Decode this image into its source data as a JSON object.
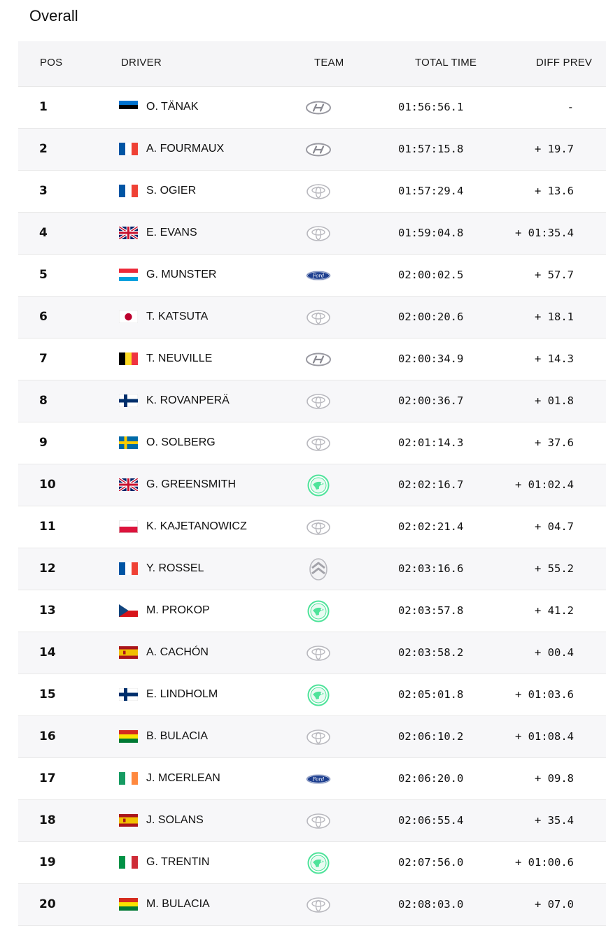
{
  "title": "Overall",
  "columns": {
    "pos": "POS",
    "driver": "DRIVER",
    "team": "TEAM",
    "total_time": "TOTAL TIME",
    "diff_prev": "DIFF PREV"
  },
  "colors": {
    "header_bg": "#f5f5f7",
    "row_alt_bg": "#f7f7f9",
    "skoda_green": "#4ee39a"
  },
  "rows": [
    {
      "pos": "1",
      "driver": "O. TÄNAK",
      "flag": "estonia",
      "team": "hyundai-logo-icon",
      "time": "01:56:56.1",
      "diff": "-"
    },
    {
      "pos": "2",
      "driver": "A. FOURMAUX",
      "flag": "france",
      "team": "hyundai-logo-icon",
      "time": "01:57:15.8",
      "diff": "+ 19.7"
    },
    {
      "pos": "3",
      "driver": "S. OGIER",
      "flag": "france",
      "team": "toyota-logo-icon",
      "time": "01:57:29.4",
      "diff": "+ 13.6"
    },
    {
      "pos": "4",
      "driver": "E. EVANS",
      "flag": "uk",
      "team": "toyota-logo-icon",
      "time": "01:59:04.8",
      "diff": "+ 01:35.4"
    },
    {
      "pos": "5",
      "driver": "G. MUNSTER",
      "flag": "luxembourg",
      "team": "ford-logo-icon",
      "time": "02:00:02.5",
      "diff": "+ 57.7"
    },
    {
      "pos": "6",
      "driver": "T. KATSUTA",
      "flag": "japan",
      "team": "toyota-logo-icon",
      "time": "02:00:20.6",
      "diff": "+ 18.1"
    },
    {
      "pos": "7",
      "driver": "T. NEUVILLE",
      "flag": "belgium",
      "team": "hyundai-logo-icon",
      "time": "02:00:34.9",
      "diff": "+ 14.3"
    },
    {
      "pos": "8",
      "driver": "K. ROVANPERÄ",
      "flag": "finland",
      "team": "toyota-logo-icon",
      "time": "02:00:36.7",
      "diff": "+ 01.8"
    },
    {
      "pos": "9",
      "driver": "O. SOLBERG",
      "flag": "sweden",
      "team": "toyota-logo-icon",
      "time": "02:01:14.3",
      "diff": "+ 37.6"
    },
    {
      "pos": "10",
      "driver": "G. GREENSMITH",
      "flag": "uk",
      "team": "skoda-logo-icon",
      "time": "02:02:16.7",
      "diff": "+ 01:02.4"
    },
    {
      "pos": "11",
      "driver": "K. KAJETANOWICZ",
      "flag": "poland",
      "team": "toyota-logo-icon",
      "time": "02:02:21.4",
      "diff": "+ 04.7"
    },
    {
      "pos": "12",
      "driver": "Y. ROSSEL",
      "flag": "france",
      "team": "citroen-logo-icon",
      "time": "02:03:16.6",
      "diff": "+ 55.2"
    },
    {
      "pos": "13",
      "driver": "M. PROKOP",
      "flag": "czechia",
      "team": "skoda-logo-icon",
      "time": "02:03:57.8",
      "diff": "+ 41.2"
    },
    {
      "pos": "14",
      "driver": "A. CACHÓN",
      "flag": "spain",
      "team": "toyota-logo-icon",
      "time": "02:03:58.2",
      "diff": "+ 00.4"
    },
    {
      "pos": "15",
      "driver": "E. LINDHOLM",
      "flag": "finland",
      "team": "skoda-logo-icon",
      "time": "02:05:01.8",
      "diff": "+ 01:03.6"
    },
    {
      "pos": "16",
      "driver": "B. BULACIA",
      "flag": "bolivia",
      "team": "toyota-logo-icon",
      "time": "02:06:10.2",
      "diff": "+ 01:08.4"
    },
    {
      "pos": "17",
      "driver": "J. MCERLEAN",
      "flag": "ireland",
      "team": "ford-logo-icon",
      "time": "02:06:20.0",
      "diff": "+ 09.8"
    },
    {
      "pos": "18",
      "driver": "J. SOLANS",
      "flag": "spain",
      "team": "toyota-logo-icon",
      "time": "02:06:55.4",
      "diff": "+ 35.4"
    },
    {
      "pos": "19",
      "driver": "G. TRENTIN",
      "flag": "italy",
      "team": "skoda-logo-icon",
      "time": "02:07:56.0",
      "diff": "+ 01:00.6"
    },
    {
      "pos": "20",
      "driver": "M. BULACIA",
      "flag": "bolivia",
      "team": "toyota-logo-icon",
      "time": "02:08:03.0",
      "diff": "+ 07.0"
    }
  ]
}
